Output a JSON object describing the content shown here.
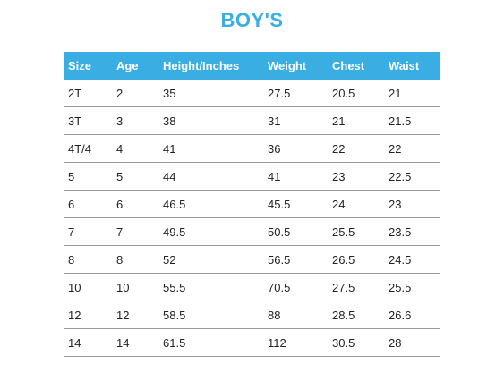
{
  "title": "BOY'S",
  "table": {
    "headers": [
      "Size",
      "Age",
      "Height/Inches",
      "Weight",
      "Chest",
      "Waist"
    ],
    "rows": [
      [
        "2T",
        "2",
        "35",
        "27.5",
        "20.5",
        "21"
      ],
      [
        "3T",
        "3",
        "38",
        "31",
        "21",
        "21.5"
      ],
      [
        "4T/4",
        "4",
        "41",
        "36",
        "22",
        "22"
      ],
      [
        "5",
        "5",
        "44",
        "41",
        "23",
        "22.5"
      ],
      [
        "6",
        "6",
        "46.5",
        "45.5",
        "24",
        "23"
      ],
      [
        "7",
        "7",
        "49.5",
        "50.5",
        "25.5",
        "23.5"
      ],
      [
        "8",
        "8",
        "52",
        "56.5",
        "26.5",
        "24.5"
      ],
      [
        "10",
        "10",
        "55.5",
        "70.5",
        "27.5",
        "25.5"
      ],
      [
        "12",
        "12",
        "58.5",
        "88",
        "28.5",
        "26.6"
      ],
      [
        "14",
        "14",
        "61.5",
        "112",
        "30.5",
        "28"
      ]
    ]
  },
  "colors": {
    "accent": "#3aaee3",
    "header_text": "#ffffff",
    "body_text": "#222222",
    "row_divider": "#9a9a9a"
  }
}
